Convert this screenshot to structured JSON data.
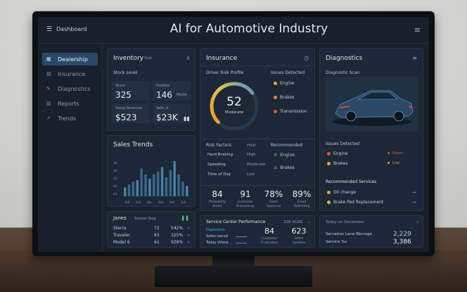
{
  "topbar": {
    "brand": "Dashboard",
    "title": "AI for Automotive Industry"
  },
  "sidebar": {
    "items": [
      {
        "label": "Dealership",
        "icon": "grid-icon",
        "active": true
      },
      {
        "label": "Insurance",
        "icon": "doc-icon",
        "active": false
      },
      {
        "label": "Diagnostics",
        "icon": "wrench-icon",
        "active": false
      },
      {
        "label": "Reports",
        "icon": "report-icon",
        "active": false
      },
      {
        "label": "Trends",
        "icon": "trend-icon",
        "active": false
      }
    ]
  },
  "inventory": {
    "title": "Inventory",
    "tag": "Stat",
    "section": "Stock Level",
    "kpis": [
      {
        "label": "Stock",
        "value": "325",
        "sub": ""
      },
      {
        "label": "Paddies",
        "value": "146",
        "sub": "Modle"
      },
      {
        "label": "Setup Revenue",
        "value": "$523",
        "sub": ""
      },
      {
        "label": "Sells..k",
        "value": "$23K",
        "sub": ""
      }
    ]
  },
  "sales": {
    "title": "Sales Trends",
    "ylabels": [
      "$5",
      "$4",
      "$3",
      "$2",
      "$1"
    ],
    "xlabels": [
      "1th",
      "1rh",
      "8w",
      "4th",
      "8th",
      "1rh"
    ]
  },
  "chart_data": {
    "type": "bar",
    "title": "Sales Trends",
    "values": [
      12,
      16,
      20,
      22,
      38,
      30,
      24,
      30,
      34,
      40,
      26,
      36,
      48,
      30,
      20,
      14
    ],
    "ylim": [
      0,
      50
    ]
  },
  "models": {
    "title": "Janes",
    "tag": "Socket Bag",
    "rows": [
      {
        "name": "Sterra",
        "a": "72",
        "b": "542%"
      },
      {
        "name": "Traveler",
        "a": "63",
        "b": "325%"
      },
      {
        "name": "Model 6",
        "a": "61",
        "b": "928%"
      }
    ]
  },
  "insurance": {
    "title": "Insurance",
    "profile_label": "Driver Risk Profile",
    "score": "52",
    "score_label": "Moderate",
    "score_fraction": 0.52,
    "issues_label": "Issues Detected",
    "issues": [
      {
        "label": "Engine",
        "color": "#e8a33c"
      },
      {
        "label": "Brakes",
        "color": "#e08a3a"
      },
      {
        "label": "Transmission",
        "color": "#e0533a"
      }
    ],
    "risk_label": "Risk Factors",
    "risk_col": "Hilat",
    "risk_factors": [
      {
        "name": "Hard Braking",
        "level": "High"
      },
      {
        "name": "Speeding",
        "level": "Moderate"
      },
      {
        "name": "Time of Day",
        "level": "Low"
      }
    ],
    "recommended_label": "Recommended",
    "recommended": [
      "Engine",
      "Brakes"
    ],
    "stats": [
      {
        "value": "84",
        "label": "Probability\ndriver"
      },
      {
        "value": "91",
        "label": "Customer\nProsentney"
      },
      {
        "value": "78%",
        "label": "Claim\nApproval"
      },
      {
        "value": "89%",
        "label": "Fraud\nReflecting"
      }
    ]
  },
  "service_center": {
    "title": "Service Center Performance",
    "tag": "328 AGAS",
    "rows": [
      "Deploctive",
      "Safes vanud",
      "Today Vitace"
    ],
    "stats": [
      {
        "value": "84",
        "label": "Customer\nFrustration"
      },
      {
        "value": "623",
        "label": "Gittm\nUpdates"
      }
    ]
  },
  "diagnostics": {
    "title": "Diagnostics",
    "scan_label": "Diagnostic Scan",
    "issues_label": "Issues Detected",
    "issues": [
      {
        "label": "Engine",
        "status": "Nigan",
        "color": "#e0533a"
      },
      {
        "label": "Brakes",
        "status": "Lnw",
        "color": "#e8a33c"
      }
    ],
    "services_label": "Recommended Services",
    "services": [
      "Oil change",
      "Brake Pad Replacement"
    ]
  },
  "schedule": {
    "title": "Today on December",
    "rows": [
      {
        "label": "Servation Lane Bbcrage",
        "value": "2,229"
      },
      {
        "label": "Service %s",
        "value": "3,386"
      }
    ]
  }
}
